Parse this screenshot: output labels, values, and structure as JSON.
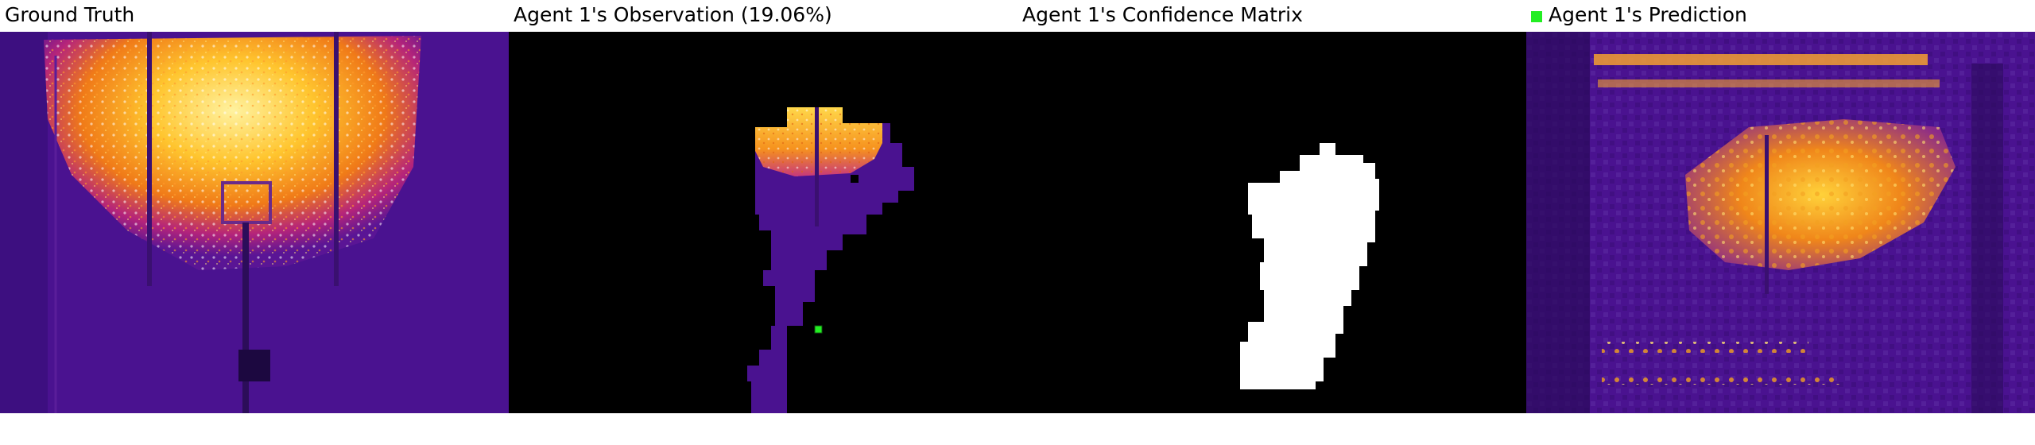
{
  "panels": [
    {
      "title": "Ground Truth"
    },
    {
      "title": "Agent 1's Observation (19.06%)"
    },
    {
      "title": "Agent 1's Confidence Matrix"
    },
    {
      "title": "Agent 1's Prediction"
    }
  ],
  "colors": {
    "background_purple": "#4a1290",
    "hot_yellow": "#ffd23a",
    "hot_orange": "#f0861a",
    "observation_mask": "#000000",
    "confidence_fill": "#ffffff",
    "agent_marker": "#22ee22"
  }
}
